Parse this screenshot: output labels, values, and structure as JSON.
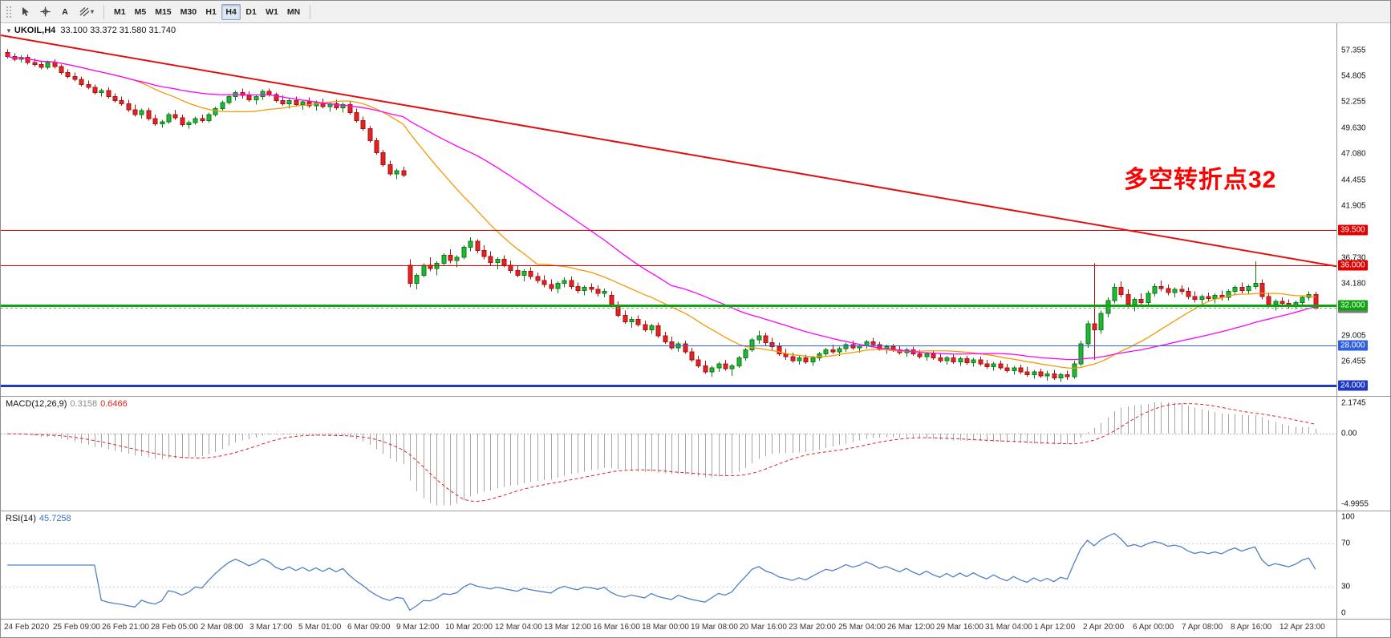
{
  "toolbar": {
    "tools": [
      "cursor",
      "crosshair",
      "text",
      "shapes"
    ],
    "text_tool_label": "A",
    "timeframes": [
      {
        "label": "M1"
      },
      {
        "label": "M5"
      },
      {
        "label": "M15"
      },
      {
        "label": "M30"
      },
      {
        "label": "H1"
      },
      {
        "label": "H4",
        "active": true
      },
      {
        "label": "D1"
      },
      {
        "label": "W1"
      },
      {
        "label": "MN"
      }
    ]
  },
  "chart": {
    "title_symbol": "UKOIL,H4",
    "title_ohlc": "33.100 33.372 31.580 31.740",
    "annotation": {
      "text": "多空转折点32",
      "color": "#ff0000"
    },
    "price_range": {
      "min": 23.0,
      "max": 60.1
    },
    "colors": {
      "up": "#1fb832",
      "up_border": "#0b7a17",
      "down": "#e32222",
      "down_border": "#a81111"
    },
    "ma": {
      "fast_period": 20,
      "fast_color": "#f59a00",
      "mid_period": 40,
      "mid_color": "#ff00ff"
    },
    "trendline": {
      "price_start": 58.9,
      "price_end": 35.9,
      "color": "#e01010",
      "width": 2
    },
    "hlines": [
      {
        "text": "39.500",
        "color": "#e00000",
        "width": 1
      },
      {
        "text": "36.000",
        "color": "#e00000",
        "width": 1
      },
      {
        "text": "32.000",
        "color": "#0da50d",
        "width": 3
      },
      {
        "text": "28.000",
        "color": "#2e5fe0",
        "width": 1
      },
      {
        "text": "24.000",
        "color": "#2038c8",
        "width": 3
      }
    ],
    "current_price": {
      "text": "31.740",
      "line_color": "#9a9a9a",
      "badge_bg": "#7a7a7a"
    },
    "price_axis": {
      "labels": [
        "57.355",
        "54.805",
        "52.255",
        "49.630",
        "47.080",
        "44.455",
        "41.905",
        "36.730",
        "34.180",
        "29.005",
        "26.455"
      ]
    },
    "time_axis": [
      "24 Feb 2020",
      "25 Feb 09:00",
      "26 Feb 21:00",
      "28 Feb 05:00",
      "2 Mar 08:00",
      "3 Mar 17:00",
      "5 Mar 01:00",
      "6 Mar 09:00",
      "9 Mar 12:00",
      "10 Mar 20:00",
      "12 Mar 04:00",
      "13 Mar 12:00",
      "16 Mar 16:00",
      "18 Mar 00:00",
      "19 Mar 08:00",
      "20 Mar 16:00",
      "23 Mar 20:00",
      "25 Mar 04:00",
      "26 Mar 12:00",
      "29 Mar 16:00",
      "31 Mar 04:00",
      "1 Apr 12:00",
      "2 Apr 20:00",
      "6 Apr 00:00",
      "7 Apr 08:00",
      "8 Apr 16:00",
      "12 Apr 23:00"
    ],
    "candles": [
      [
        57.2,
        57.5,
        56.6,
        56.8
      ],
      [
        56.8,
        57.1,
        56.3,
        56.5
      ],
      [
        56.5,
        56.9,
        56.2,
        56.7
      ],
      [
        56.7,
        57.0,
        56.0,
        56.2
      ],
      [
        56.2,
        56.6,
        55.8,
        56.0
      ],
      [
        56.0,
        56.3,
        55.5,
        55.7
      ],
      [
        55.7,
        56.4,
        55.5,
        56.2
      ],
      [
        56.2,
        56.5,
        55.6,
        55.8
      ],
      [
        55.8,
        56.0,
        55.0,
        55.2
      ],
      [
        55.2,
        55.5,
        54.6,
        54.8
      ],
      [
        54.8,
        55.2,
        54.3,
        54.5
      ],
      [
        54.5,
        54.8,
        53.8,
        54.0
      ],
      [
        54.0,
        54.4,
        53.5,
        53.7
      ],
      [
        53.7,
        54.0,
        53.0,
        53.2
      ],
      [
        53.2,
        53.6,
        52.8,
        53.4
      ],
      [
        53.4,
        53.7,
        52.6,
        52.8
      ],
      [
        52.8,
        53.1,
        52.2,
        52.4
      ],
      [
        52.4,
        52.8,
        51.9,
        52.1
      ],
      [
        52.1,
        52.5,
        51.3,
        51.5
      ],
      [
        51.5,
        52.0,
        50.8,
        51.0
      ],
      [
        51.0,
        51.6,
        50.6,
        51.4
      ],
      [
        51.4,
        51.7,
        50.4,
        50.6
      ],
      [
        50.6,
        51.0,
        49.9,
        50.1
      ],
      [
        50.1,
        50.5,
        49.7,
        50.3
      ],
      [
        50.3,
        51.2,
        50.1,
        51.0
      ],
      [
        51.0,
        51.5,
        50.5,
        50.7
      ],
      [
        50.7,
        51.0,
        49.8,
        50.0
      ],
      [
        50.0,
        50.4,
        49.6,
        50.2
      ],
      [
        50.2,
        50.8,
        50.0,
        50.6
      ],
      [
        50.6,
        51.0,
        50.2,
        50.4
      ],
      [
        50.4,
        51.2,
        50.2,
        51.0
      ],
      [
        51.0,
        51.8,
        50.8,
        51.6
      ],
      [
        51.6,
        52.4,
        51.4,
        52.2
      ],
      [
        52.2,
        53.0,
        52.0,
        52.8
      ],
      [
        52.8,
        53.4,
        52.4,
        53.2
      ],
      [
        53.2,
        53.6,
        52.6,
        52.9
      ],
      [
        52.9,
        53.3,
        52.3,
        52.5
      ],
      [
        52.5,
        53.0,
        52.0,
        52.8
      ],
      [
        52.8,
        53.5,
        52.5,
        53.3
      ],
      [
        53.3,
        53.6,
        52.8,
        53.0
      ],
      [
        53.0,
        53.2,
        52.2,
        52.4
      ],
      [
        52.4,
        52.9,
        51.9,
        52.1
      ],
      [
        52.1,
        52.6,
        51.6,
        52.4
      ],
      [
        52.4,
        52.8,
        51.8,
        52.0
      ],
      [
        52.0,
        52.5,
        51.5,
        52.3
      ],
      [
        52.3,
        52.7,
        51.7,
        51.9
      ],
      [
        51.9,
        52.4,
        51.4,
        52.2
      ],
      [
        52.2,
        52.6,
        51.6,
        51.8
      ],
      [
        51.8,
        52.3,
        51.3,
        52.1
      ],
      [
        52.1,
        52.5,
        51.5,
        51.7
      ],
      [
        51.7,
        52.2,
        51.2,
        52.0
      ],
      [
        52.0,
        52.4,
        51.0,
        51.2
      ],
      [
        51.2,
        51.6,
        50.2,
        50.4
      ],
      [
        50.4,
        50.8,
        49.4,
        49.6
      ],
      [
        49.6,
        49.9,
        48.2,
        48.4
      ],
      [
        48.4,
        48.7,
        47.0,
        47.2
      ],
      [
        47.2,
        47.5,
        45.8,
        46.0
      ],
      [
        46.0,
        46.4,
        44.9,
        45.1
      ],
      [
        45.1,
        45.6,
        44.6,
        45.4
      ],
      [
        45.4,
        45.8,
        44.8,
        45.0
      ],
      [
        36.0,
        36.6,
        33.8,
        34.2
      ],
      [
        34.2,
        35.2,
        33.6,
        35.0
      ],
      [
        35.0,
        36.2,
        34.8,
        36.0
      ],
      [
        36.0,
        36.8,
        35.4,
        35.7
      ],
      [
        35.7,
        36.4,
        35.0,
        36.2
      ],
      [
        36.2,
        37.2,
        36.0,
        37.0
      ],
      [
        37.0,
        37.6,
        36.2,
        36.5
      ],
      [
        36.5,
        37.0,
        35.8,
        36.8
      ],
      [
        36.8,
        38.0,
        36.6,
        37.8
      ],
      [
        37.8,
        38.8,
        37.4,
        38.4
      ],
      [
        38.4,
        38.6,
        37.2,
        37.5
      ],
      [
        37.5,
        38.0,
        36.6,
        36.9
      ],
      [
        36.9,
        37.4,
        36.0,
        36.3
      ],
      [
        36.3,
        36.8,
        35.6,
        36.6
      ],
      [
        36.6,
        37.0,
        35.8,
        36.0
      ],
      [
        36.0,
        36.5,
        35.2,
        35.5
      ],
      [
        35.5,
        36.0,
        34.8,
        35.0
      ],
      [
        35.0,
        35.6,
        34.4,
        35.4
      ],
      [
        35.4,
        35.8,
        34.6,
        34.9
      ],
      [
        34.9,
        35.3,
        34.2,
        34.5
      ],
      [
        34.5,
        35.0,
        33.8,
        34.1
      ],
      [
        34.1,
        34.6,
        33.4,
        33.7
      ],
      [
        33.7,
        34.4,
        33.2,
        34.2
      ],
      [
        34.2,
        34.8,
        33.8,
        34.5
      ],
      [
        34.5,
        34.9,
        33.6,
        33.9
      ],
      [
        33.9,
        34.3,
        33.2,
        33.5
      ],
      [
        33.5,
        34.0,
        33.0,
        33.8
      ],
      [
        33.8,
        34.2,
        33.3,
        33.6
      ],
      [
        33.6,
        34.0,
        32.9,
        33.2
      ],
      [
        33.2,
        33.7,
        32.8,
        33.4
      ],
      [
        33.0,
        33.4,
        31.8,
        32.0
      ],
      [
        32.0,
        32.4,
        30.8,
        31.0
      ],
      [
        31.0,
        31.5,
        30.2,
        30.4
      ],
      [
        30.4,
        30.9,
        29.8,
        30.6
      ],
      [
        30.6,
        31.0,
        29.9,
        30.1
      ],
      [
        30.1,
        30.5,
        29.4,
        29.6
      ],
      [
        29.6,
        30.2,
        29.2,
        30.0
      ],
      [
        30.0,
        30.3,
        28.8,
        29.0
      ],
      [
        29.0,
        29.4,
        28.2,
        28.4
      ],
      [
        28.4,
        28.9,
        27.6,
        27.8
      ],
      [
        27.8,
        28.4,
        27.4,
        28.2
      ],
      [
        28.2,
        28.5,
        27.2,
        27.4
      ],
      [
        27.4,
        27.8,
        26.4,
        26.6
      ],
      [
        26.6,
        27.0,
        25.8,
        26.0
      ],
      [
        26.0,
        26.5,
        25.2,
        25.4
      ],
      [
        25.4,
        26.0,
        24.9,
        25.8
      ],
      [
        25.8,
        26.4,
        25.4,
        26.2
      ],
      [
        26.2,
        26.6,
        25.5,
        25.7
      ],
      [
        25.7,
        26.2,
        25.0,
        26.0
      ],
      [
        26.0,
        27.0,
        25.8,
        26.8
      ],
      [
        26.8,
        27.8,
        26.5,
        27.6
      ],
      [
        27.6,
        28.8,
        27.4,
        28.6
      ],
      [
        28.6,
        29.5,
        28.2,
        29.0
      ],
      [
        29.0,
        29.3,
        28.0,
        28.3
      ],
      [
        28.3,
        28.8,
        27.6,
        27.9
      ],
      [
        27.9,
        28.3,
        27.0,
        27.2
      ],
      [
        27.2,
        27.7,
        26.6,
        26.9
      ],
      [
        26.9,
        27.3,
        26.3,
        26.5
      ],
      [
        26.5,
        27.0,
        26.1,
        26.8
      ],
      [
        26.8,
        27.1,
        26.2,
        26.4
      ],
      [
        26.4,
        27.0,
        26.0,
        26.8
      ],
      [
        26.8,
        27.4,
        26.5,
        27.2
      ],
      [
        27.2,
        27.8,
        26.9,
        27.6
      ],
      [
        27.6,
        28.1,
        27.2,
        27.4
      ],
      [
        27.4,
        27.9,
        27.0,
        27.7
      ],
      [
        27.7,
        28.3,
        27.4,
        28.1
      ],
      [
        28.1,
        28.5,
        27.6,
        27.8
      ],
      [
        27.8,
        28.2,
        27.3,
        28.0
      ],
      [
        28.0,
        28.6,
        27.7,
        28.4
      ],
      [
        28.4,
        28.8,
        27.9,
        28.1
      ],
      [
        28.1,
        28.4,
        27.5,
        27.7
      ],
      [
        27.7,
        28.1,
        27.2,
        27.9
      ],
      [
        27.9,
        28.2,
        27.4,
        27.6
      ],
      [
        27.6,
        28.0,
        27.1,
        27.3
      ],
      [
        27.3,
        27.8,
        26.9,
        27.6
      ],
      [
        27.6,
        27.9,
        27.0,
        27.2
      ],
      [
        27.2,
        27.6,
        26.7,
        26.9
      ],
      [
        26.9,
        27.4,
        26.5,
        27.2
      ],
      [
        27.2,
        27.5,
        26.6,
        26.8
      ],
      [
        26.8,
        27.2,
        26.3,
        26.5
      ],
      [
        26.5,
        27.0,
        26.1,
        26.8
      ],
      [
        26.8,
        27.1,
        26.2,
        26.4
      ],
      [
        26.4,
        26.9,
        26.0,
        26.7
      ],
      [
        26.7,
        27.0,
        26.1,
        26.3
      ],
      [
        26.3,
        26.8,
        25.9,
        26.6
      ],
      [
        26.6,
        26.9,
        26.0,
        26.2
      ],
      [
        26.2,
        26.6,
        25.7,
        25.9
      ],
      [
        25.9,
        26.4,
        25.5,
        26.2
      ],
      [
        26.2,
        26.5,
        25.6,
        25.8
      ],
      [
        25.8,
        26.2,
        25.3,
        25.5
      ],
      [
        25.5,
        26.0,
        25.1,
        25.8
      ],
      [
        25.8,
        26.1,
        25.2,
        25.4
      ],
      [
        25.4,
        25.9,
        24.9,
        25.1
      ],
      [
        25.1,
        25.6,
        24.7,
        25.4
      ],
      [
        25.4,
        25.7,
        24.8,
        25.0
      ],
      [
        25.0,
        25.5,
        24.5,
        25.2
      ],
      [
        25.2,
        25.6,
        24.6,
        24.8
      ],
      [
        24.8,
        25.3,
        24.4,
        25.1
      ],
      [
        25.1,
        25.5,
        24.6,
        24.9
      ],
      [
        24.9,
        26.5,
        24.7,
        26.2
      ],
      [
        26.2,
        28.5,
        26.0,
        28.2
      ],
      [
        28.2,
        30.5,
        27.8,
        30.2
      ],
      [
        30.2,
        36.2,
        26.6,
        29.6
      ],
      [
        29.6,
        31.5,
        29.2,
        31.2
      ],
      [
        31.2,
        32.8,
        30.8,
        32.5
      ],
      [
        32.5,
        34.2,
        32.2,
        33.8
      ],
      [
        33.8,
        34.4,
        32.8,
        33.1
      ],
      [
        33.1,
        33.6,
        31.8,
        32.1
      ],
      [
        32.1,
        32.8,
        31.4,
        32.6
      ],
      [
        32.6,
        33.2,
        32.0,
        32.3
      ],
      [
        32.3,
        33.5,
        32.0,
        33.2
      ],
      [
        33.2,
        34.2,
        32.9,
        33.9
      ],
      [
        33.9,
        34.5,
        33.4,
        33.7
      ],
      [
        33.7,
        34.1,
        33.0,
        33.3
      ],
      [
        33.3,
        33.8,
        32.8,
        33.6
      ],
      [
        33.6,
        34.0,
        33.1,
        33.4
      ],
      [
        33.4,
        33.8,
        32.6,
        32.9
      ],
      [
        32.9,
        33.4,
        32.3,
        32.6
      ],
      [
        32.6,
        33.1,
        32.1,
        32.9
      ],
      [
        32.9,
        33.3,
        32.4,
        32.7
      ],
      [
        32.7,
        33.2,
        32.2,
        33.0
      ],
      [
        33.0,
        33.5,
        32.5,
        32.8
      ],
      [
        32.8,
        33.6,
        32.5,
        33.4
      ],
      [
        33.4,
        34.0,
        33.0,
        33.8
      ],
      [
        33.8,
        34.3,
        33.2,
        33.5
      ],
      [
        33.5,
        34.1,
        33.1,
        33.9
      ],
      [
        33.9,
        36.4,
        33.6,
        34.2
      ],
      [
        34.2,
        34.6,
        32.6,
        32.9
      ],
      [
        32.9,
        33.3,
        31.8,
        32.1
      ],
      [
        32.1,
        32.6,
        31.5,
        32.4
      ],
      [
        32.4,
        32.8,
        31.9,
        32.2
      ],
      [
        32.2,
        32.6,
        31.7,
        32.0
      ],
      [
        32.0,
        32.5,
        31.6,
        32.3
      ],
      [
        32.3,
        33.0,
        32.0,
        32.8
      ],
      [
        32.8,
        33.4,
        32.5,
        33.1
      ],
      [
        33.1,
        33.372,
        31.58,
        31.74
      ]
    ]
  },
  "macd": {
    "name": "MACD(12,26,9)",
    "value_main": "0.3158",
    "value_signal": "0.6466",
    "fast": 12,
    "slow": 26,
    "signal": 9,
    "hist_color": "#a6a6a6",
    "signal_color": "#dd2222",
    "scale_top": "2.1745",
    "scale_zero": "0.00",
    "scale_bottom": "-4.9955"
  },
  "rsi": {
    "name": "RSI(14)",
    "value": "45.7258",
    "period": 14,
    "line_color": "#4f81c7",
    "levels": [
      30,
      70
    ],
    "scale_labels": [
      {
        "text": "100",
        "v": 100
      },
      {
        "text": "70",
        "v": 70
      },
      {
        "text": "30",
        "v": 30
      },
      {
        "text": "0",
        "v": 0
      }
    ]
  }
}
